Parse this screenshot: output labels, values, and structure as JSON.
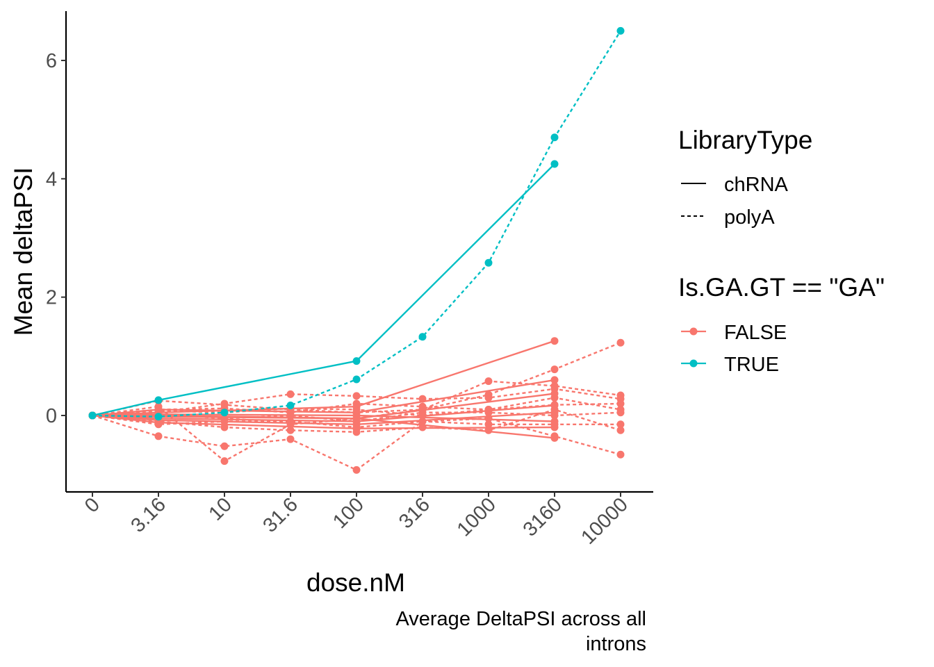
{
  "chart_data": {
    "type": "line",
    "xlabel": "dose.nM",
    "ylabel": "Mean deltaPSI",
    "caption": [
      "Average DeltaPSI across all",
      "introns"
    ],
    "categories": [
      "0",
      "3.16",
      "10",
      "31.6",
      "100",
      "316",
      "1000",
      "3160",
      "10000"
    ],
    "x_positions": [
      0,
      0.5,
      1,
      1.5,
      2,
      2.5,
      3,
      3.5,
      4
    ],
    "y_ticks": [
      0,
      2,
      4,
      6
    ],
    "ylim": [
      -1.3,
      6.8
    ],
    "grid": false,
    "legend_position": "right",
    "legends": [
      {
        "title": "LibraryType",
        "kind": "linetype",
        "entries": [
          {
            "label": "chRNA",
            "dash": "solid"
          },
          {
            "label": "polyA",
            "dash": "dashed"
          }
        ]
      },
      {
        "title": "Is.GA.GT == \"GA\"",
        "kind": "color",
        "entries": [
          {
            "label": "FALSE",
            "color": "#F8766D"
          },
          {
            "label": "TRUE",
            "color": "#00BFC4"
          }
        ]
      }
    ],
    "colors": {
      "FALSE": "#F8766D",
      "TRUE": "#00BFC4"
    },
    "series": [
      {
        "group": "TRUE",
        "library": "chRNA",
        "x": [
          0,
          0.5,
          2,
          3.5
        ],
        "y": [
          0,
          0.26,
          0.92,
          4.25
        ]
      },
      {
        "group": "TRUE",
        "library": "polyA",
        "x": [
          0,
          0.5,
          1,
          1.5,
          2,
          2.5,
          3,
          3.5,
          4
        ],
        "y": [
          0,
          -0.02,
          0.05,
          0.17,
          0.61,
          1.33,
          2.58,
          4.7,
          6.5
        ]
      },
      {
        "group": "FALSE",
        "library": "chRNA",
        "x": [
          0,
          0.5,
          2,
          3.5
        ],
        "y": [
          0,
          0.05,
          0.15,
          1.26
        ]
      },
      {
        "group": "FALSE",
        "library": "chRNA",
        "x": [
          0,
          0.5,
          2,
          3.5
        ],
        "y": [
          0,
          0.1,
          0.05,
          0.6
        ]
      },
      {
        "group": "FALSE",
        "library": "chRNA",
        "x": [
          0,
          0.5,
          2,
          3.5
        ],
        "y": [
          0,
          0.0,
          -0.05,
          0.37
        ]
      },
      {
        "group": "FALSE",
        "library": "chRNA",
        "x": [
          0,
          0.5,
          2,
          3.5
        ],
        "y": [
          0,
          -0.05,
          -0.1,
          0.17
        ]
      },
      {
        "group": "FALSE",
        "library": "chRNA",
        "x": [
          0,
          0.5,
          2,
          3.5
        ],
        "y": [
          0,
          -0.08,
          -0.15,
          0.05
        ]
      },
      {
        "group": "FALSE",
        "library": "chRNA",
        "x": [
          0,
          0.5,
          2,
          3.5
        ],
        "y": [
          0,
          0.02,
          0.0,
          -0.1
        ]
      },
      {
        "group": "FALSE",
        "library": "chRNA",
        "x": [
          0,
          0.5,
          2,
          3.5
        ],
        "y": [
          0,
          -0.12,
          -0.22,
          -0.2
        ]
      },
      {
        "group": "FALSE",
        "library": "chRNA",
        "x": [
          0,
          0.5,
          2,
          3.5
        ],
        "y": [
          0,
          -0.02,
          -0.05,
          -0.38
        ]
      },
      {
        "group": "FALSE",
        "library": "polyA",
        "x": [
          0,
          0.5,
          1,
          1.5,
          2,
          2.5,
          3,
          3.5,
          4
        ],
        "y": [
          0,
          0.25,
          0.18,
          0.1,
          0.05,
          0.1,
          0.35,
          0.78,
          1.23
        ]
      },
      {
        "group": "FALSE",
        "library": "polyA",
        "x": [
          0,
          0.5,
          1,
          1.5,
          2,
          2.5,
          3,
          3.5,
          4
        ],
        "y": [
          0,
          -0.35,
          -0.52,
          -0.4,
          -0.92,
          -0.1,
          -0.05,
          -0.35,
          -0.66
        ]
      },
      {
        "group": "FALSE",
        "library": "polyA",
        "x": [
          0,
          0.5,
          1,
          1.5,
          2,
          2.5,
          3,
          3.5,
          4
        ],
        "y": [
          0,
          0.15,
          -0.77,
          -0.15,
          -0.05,
          0.1,
          0.58,
          0.5,
          0.34
        ]
      },
      {
        "group": "FALSE",
        "library": "polyA",
        "x": [
          0,
          0.5,
          1,
          1.5,
          2,
          2.5,
          3,
          3.5,
          4
        ],
        "y": [
          0,
          0.05,
          0.2,
          0.36,
          0.33,
          0.28,
          0.3,
          0.45,
          0.28
        ]
      },
      {
        "group": "FALSE",
        "library": "polyA",
        "x": [
          0,
          0.5,
          1,
          1.5,
          2,
          2.5,
          3,
          3.5,
          4
        ],
        "y": [
          0,
          0.1,
          0.12,
          0.05,
          0.2,
          0.15,
          0.1,
          0.18,
          0.2
        ]
      },
      {
        "group": "FALSE",
        "library": "polyA",
        "x": [
          0,
          0.5,
          1,
          1.5,
          2,
          2.5,
          3,
          3.5,
          4
        ],
        "y": [
          0,
          -0.1,
          -0.2,
          -0.25,
          -0.28,
          -0.2,
          -0.25,
          0.1,
          -0.25
        ]
      },
      {
        "group": "FALSE",
        "library": "polyA",
        "x": [
          0,
          0.5,
          1,
          1.5,
          2,
          2.5,
          3,
          3.5,
          4
        ],
        "y": [
          0,
          0.02,
          -0.05,
          0.0,
          -0.1,
          0.05,
          0.05,
          0.0,
          0.05
        ]
      },
      {
        "group": "FALSE",
        "library": "polyA",
        "x": [
          0,
          0.5,
          1,
          1.5,
          2,
          2.5,
          3,
          3.5,
          4
        ],
        "y": [
          0,
          -0.15,
          -0.1,
          -0.1,
          -0.2,
          -0.1,
          -0.15,
          -0.15,
          -0.15
        ]
      },
      {
        "group": "FALSE",
        "library": "polyA",
        "x": [
          0,
          0.5,
          1,
          1.5,
          2,
          2.5,
          3,
          3.5,
          4
        ],
        "y": [
          0,
          0.08,
          0.05,
          0.12,
          0.1,
          0.0,
          0.1,
          0.3,
          0.1
        ]
      }
    ]
  }
}
